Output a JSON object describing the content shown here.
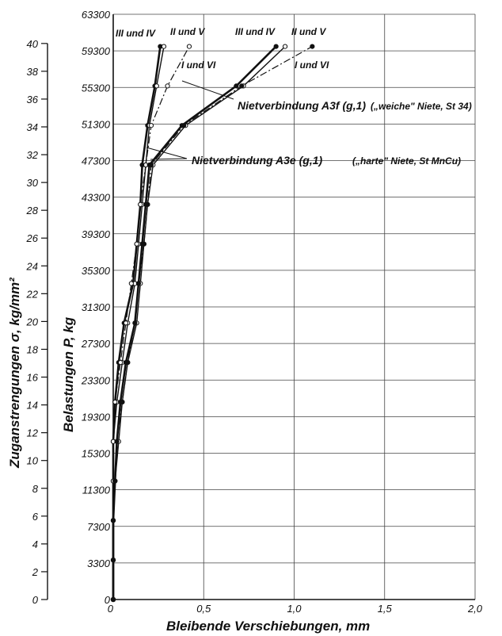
{
  "chart_data": {
    "type": "line",
    "xlabel": "Bleibende Verschiebungen, mm",
    "ylabel_outer": "Zuganstrengungen σ, kg/mm²",
    "ylabel_inner": "Belastungen P, kg",
    "xlim": [
      0,
      2.0
    ],
    "ylim": [
      0,
      40
    ],
    "grid": true,
    "x_ticks": [
      {
        "v": 0,
        "label": "0"
      },
      {
        "v": 0.5,
        "label": "0,5"
      },
      {
        "v": 1.0,
        "label": "1,0"
      },
      {
        "v": 1.5,
        "label": "1,5"
      },
      {
        "v": 2.0,
        "label": "2,0"
      }
    ],
    "sigma_ticks": [
      0,
      2,
      4,
      6,
      8,
      10,
      12,
      14,
      16,
      18,
      20,
      22,
      24,
      26,
      28,
      30,
      32,
      34,
      36,
      38,
      40
    ],
    "load_ticks": [
      {
        "sigma": 0,
        "label": "0"
      },
      {
        "sigma": 2,
        "label": "3300"
      },
      {
        "sigma": 4,
        "label": "7300"
      },
      {
        "sigma": 6,
        "label": "11300"
      },
      {
        "sigma": 8,
        "label": "15300"
      },
      {
        "sigma": 10,
        "label": "19300"
      },
      {
        "sigma": 12,
        "label": "23300"
      },
      {
        "sigma": 14,
        "label": "27300"
      },
      {
        "sigma": 16,
        "label": "31300"
      },
      {
        "sigma": 18,
        "label": "35300"
      },
      {
        "sigma": 20,
        "label": "39300"
      },
      {
        "sigma": 22,
        "label": "43300"
      },
      {
        "sigma": 24,
        "label": "47300"
      },
      {
        "sigma": 26,
        "label": "51300"
      },
      {
        "sigma": 28,
        "label": "55300"
      },
      {
        "sigma": 30,
        "label": "59300"
      },
      {
        "sigma": 32,
        "label": "63300"
      }
    ],
    "series": [
      {
        "name": "III und IV",
        "group": "A3e",
        "style": "solid-bold",
        "marker": "filled",
        "x": [
          0,
          0,
          0,
          0,
          0,
          0.01,
          0.03,
          0.06,
          0.11,
          0.13,
          0.15,
          0.16,
          0.19,
          0.23,
          0.26
        ],
        "y": [
          0,
          2,
          4,
          6,
          8,
          10,
          12,
          14,
          16,
          18,
          20,
          22,
          24,
          26,
          28
        ]
      },
      {
        "name": "II und V",
        "group": "A3e",
        "style": "solid",
        "marker": "open",
        "x": [
          0,
          0,
          0,
          0,
          0,
          0.02,
          0.05,
          0.08,
          0.12,
          0.14,
          0.16,
          0.18,
          0.2,
          0.24,
          0.28
        ],
        "y": [
          0,
          2,
          4,
          6,
          8,
          10,
          12,
          14,
          16,
          18,
          20,
          22,
          24,
          26,
          28
        ]
      },
      {
        "name": "I und VI",
        "group": "A3e",
        "style": "dashdot",
        "marker": "open",
        "x": [
          0,
          0,
          0,
          0,
          0,
          0.01,
          0.04,
          0.07,
          0.1,
          0.13,
          0.15,
          0.18,
          0.21,
          0.3,
          0.42
        ],
        "y": [
          0,
          2,
          4,
          6,
          8,
          10,
          12,
          14,
          16,
          18,
          20,
          22,
          24,
          26,
          28
        ]
      },
      {
        "name": "III und IV",
        "group": "A3f",
        "style": "solid-bold",
        "marker": "filled",
        "x": [
          0,
          0,
          0,
          0.01,
          0.02,
          0.04,
          0.07,
          0.12,
          0.14,
          0.16,
          0.18,
          0.2,
          0.38,
          0.68,
          0.9
        ],
        "y": [
          0,
          2,
          4,
          6,
          8,
          10,
          12,
          14,
          16,
          18,
          20,
          22,
          24,
          26,
          28
        ]
      },
      {
        "name": "II und V",
        "group": "A3f",
        "style": "solid",
        "marker": "open",
        "x": [
          0,
          0,
          0,
          0.01,
          0.03,
          0.05,
          0.08,
          0.13,
          0.15,
          0.17,
          0.19,
          0.22,
          0.4,
          0.72,
          0.95
        ],
        "y": [
          0,
          2,
          4,
          6,
          8,
          10,
          12,
          14,
          16,
          18,
          20,
          22,
          24,
          26,
          28
        ]
      },
      {
        "name": "I und VI",
        "group": "A3f",
        "style": "dashdot",
        "marker": "filled",
        "x": [
          0,
          0,
          0,
          0.01,
          0.02,
          0.05,
          0.08,
          0.12,
          0.14,
          0.17,
          0.19,
          0.21,
          0.39,
          0.71,
          1.1
        ],
        "y": [
          0,
          2,
          4,
          6,
          8,
          10,
          12,
          14,
          16,
          18,
          20,
          22,
          24,
          26,
          28
        ]
      }
    ],
    "annotations": [
      {
        "text": "Nietverbindung A3f (g,1)",
        "suffix": "(„weiche\" Niete, St 34)"
      },
      {
        "text": "Nietverbindung A3e (g,1)",
        "suffix": "(„harte\" Niete, St MnCu)"
      }
    ],
    "series_labels": {
      "a3e_iii_iv": "III und IV",
      "a3e_ii_v": "II und V",
      "a3e_i_vi": "I und VI",
      "a3f_iii_iv": "III und IV",
      "a3f_ii_v": "II und V",
      "a3f_i_vi": "I und VI"
    }
  }
}
